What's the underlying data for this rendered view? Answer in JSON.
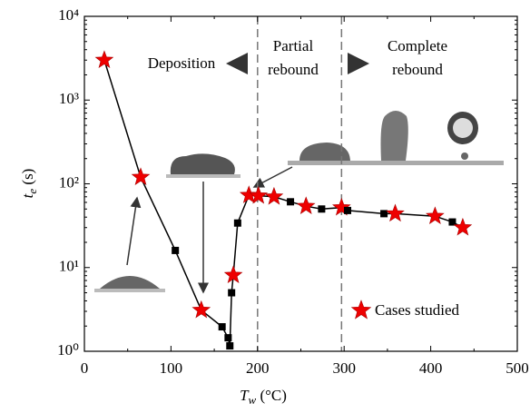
{
  "chart_data": {
    "type": "line",
    "log_y": true,
    "xlim": [
      0,
      500
    ],
    "xticks": [
      0,
      100,
      200,
      300,
      400,
      500
    ],
    "ylim": [
      1,
      10000
    ],
    "yticks": [
      {
        "value": 1,
        "label": "10⁰"
      },
      {
        "value": 10,
        "label": "10¹"
      },
      {
        "value": 100,
        "label": "10²"
      },
      {
        "value": 1000,
        "label": "10³"
      },
      {
        "value": 10000,
        "label": "10⁴"
      }
    ],
    "xlabel": {
      "symbol": "T",
      "subscript": "w",
      "unit": " (°C)"
    },
    "ylabel": {
      "symbol": "t",
      "subscript": "e",
      "unit": " (s)"
    },
    "series": [
      {
        "color": "#000000",
        "star_color": "#ee0000",
        "x": [
          23,
          65,
          105,
          135,
          159,
          166,
          168,
          170,
          172,
          177,
          190,
          201,
          219,
          238,
          256,
          274,
          297,
          304,
          346,
          359,
          405,
          425,
          437
        ],
        "values": [
          3000,
          120,
          16,
          3.1,
          1.96,
          1.45,
          1.16,
          5,
          8.1,
          34,
          73,
          72,
          70,
          61,
          54,
          50,
          52,
          48,
          44,
          44,
          41,
          35,
          30
        ],
        "markers": [
          "star",
          "star",
          "square",
          "star",
          "square",
          "square",
          "square",
          "square",
          "star",
          "square",
          "star",
          "star",
          "star",
          "square",
          "star",
          "square",
          "star",
          "square",
          "square",
          "star",
          "star",
          "square",
          "star"
        ]
      }
    ],
    "legend": {
      "label": "Cases studied",
      "marker": "star"
    },
    "dividers": [
      200,
      297
    ],
    "annotations": {
      "deposition": "Deposition",
      "partial": [
        "Partial",
        "rebound"
      ],
      "complete": [
        "Complete",
        "rebound"
      ]
    }
  }
}
